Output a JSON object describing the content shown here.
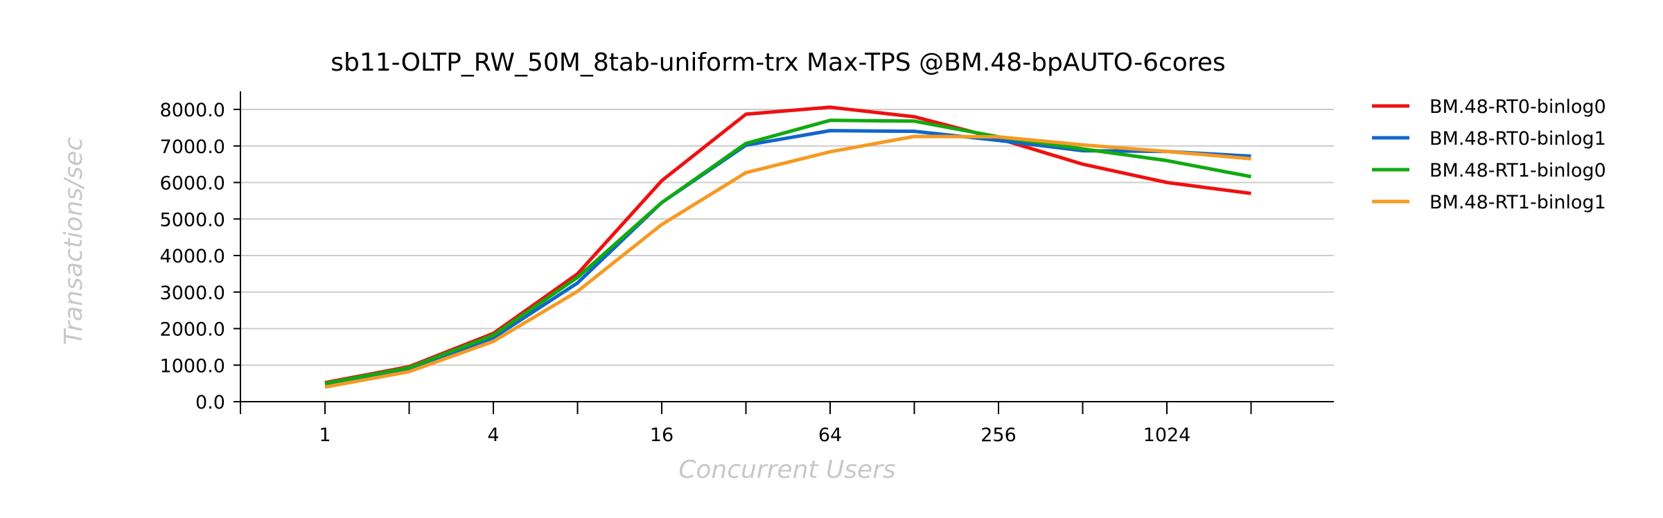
{
  "chart_data": {
    "type": "line",
    "title": "sb11-OLTP_RW_50M_8tab-uniform-trx Max-TPS @BM.48-bpAUTO-6cores",
    "xlabel": "Concurrent Users",
    "ylabel": "Transactions/sec",
    "x_scale": "log2",
    "x": [
      1,
      2,
      4,
      8,
      16,
      32,
      64,
      128,
      256,
      512,
      1024,
      2048
    ],
    "x_tick_values": [
      1,
      4,
      16,
      64,
      256,
      1024
    ],
    "x_tick_labels": [
      "1",
      "4",
      "16",
      "64",
      "256",
      "1024"
    ],
    "ylim": [
      0,
      8000
    ],
    "y_ticks": [
      0,
      1000,
      2000,
      3000,
      4000,
      5000,
      6000,
      7000,
      8000
    ],
    "y_tick_labels": [
      "0.0",
      "1000.0",
      "2000.0",
      "3000.0",
      "4000.0",
      "5000.0",
      "6000.0",
      "7000.0",
      "8000.0"
    ],
    "grid": "horizontal",
    "legend_position": "right",
    "series": [
      {
        "name": "BM.48-RT0-binlog0",
        "color": "#ee1111",
        "values": [
          520,
          960,
          1870,
          3500,
          6050,
          7870,
          8060,
          7800,
          7200,
          6500,
          6000,
          5700
        ]
      },
      {
        "name": "BM.48-RT0-binlog1",
        "color": "#1166cc",
        "values": [
          480,
          900,
          1750,
          3250,
          5450,
          7020,
          7420,
          7400,
          7150,
          6870,
          6850,
          6720
        ]
      },
      {
        "name": "BM.48-RT1-binlog0",
        "color": "#11aa11",
        "values": [
          500,
          930,
          1820,
          3400,
          5450,
          7070,
          7700,
          7680,
          7250,
          6920,
          6600,
          6160
        ]
      },
      {
        "name": "BM.48-RT1-binlog1",
        "color": "#f59a23",
        "values": [
          400,
          820,
          1650,
          3020,
          4850,
          6270,
          6840,
          7260,
          7250,
          7030,
          6850,
          6650
        ]
      }
    ]
  }
}
